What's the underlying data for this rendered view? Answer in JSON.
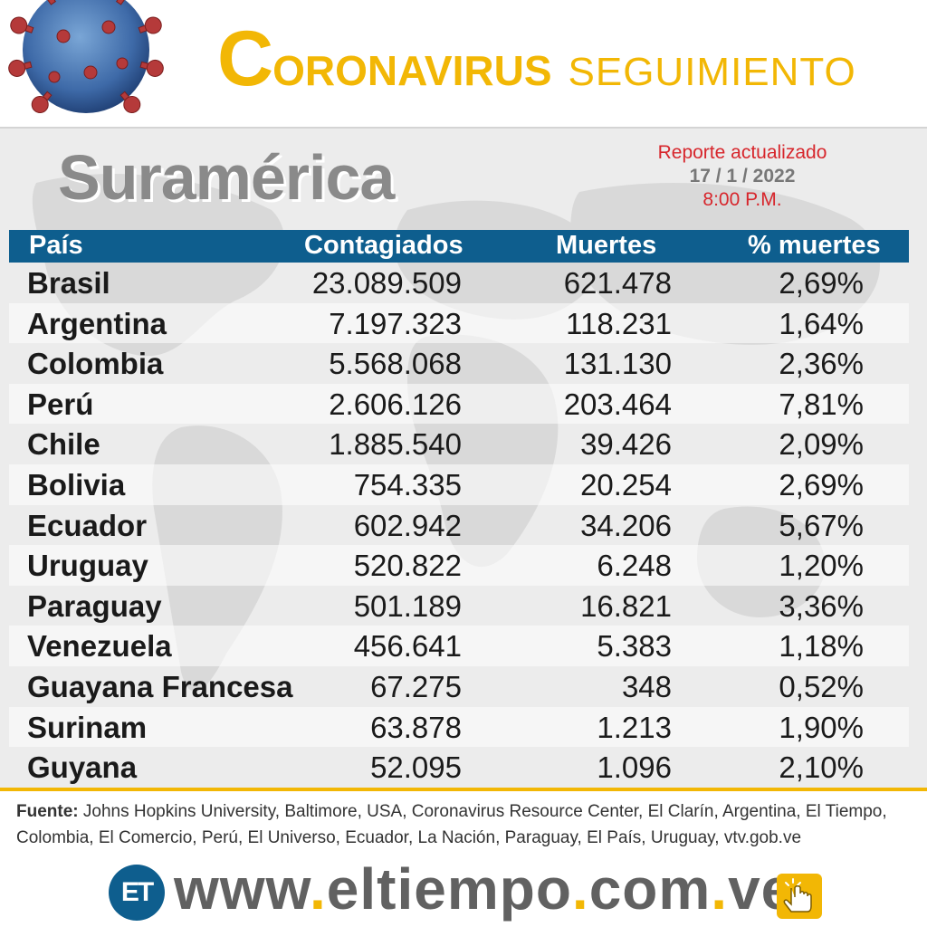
{
  "header": {
    "title_initial": "C",
    "title_rest": "ORONAVIRUS",
    "title_subtitle": "SEGUIMIENTO",
    "region": "Suramérica",
    "report_label": "Reporte actualizado",
    "report_date": "17 / 1 / 2022",
    "report_time": "8:00 P.M."
  },
  "table": {
    "columns": [
      "País",
      "Contagiados",
      "Muertes",
      "% muertes"
    ],
    "rows": [
      {
        "country": "Brasil",
        "cases": "23.089.509",
        "deaths": "621.478",
        "pct": "2,69%"
      },
      {
        "country": "Argentina",
        "cases": "7.197.323",
        "deaths": "118.231",
        "pct": "1,64%"
      },
      {
        "country": "Colombia",
        "cases": "5.568.068",
        "deaths": "131.130",
        "pct": "2,36%"
      },
      {
        "country": "Perú",
        "cases": "2.606.126",
        "deaths": "203.464",
        "pct": "7,81%"
      },
      {
        "country": "Chile",
        "cases": "1.885.540",
        "deaths": "39.426",
        "pct": "2,09%"
      },
      {
        "country": "Bolivia",
        "cases": "754.335",
        "deaths": "20.254",
        "pct": "2,69%"
      },
      {
        "country": "Ecuador",
        "cases": "602.942",
        "deaths": "34.206",
        "pct": "5,67%"
      },
      {
        "country": "Uruguay",
        "cases": "520.822",
        "deaths": "6.248",
        "pct": "1,20%"
      },
      {
        "country": "Paraguay",
        "cases": "501.189",
        "deaths": "16.821",
        "pct": "3,36%"
      },
      {
        "country": "Venezuela",
        "cases": "456.641",
        "deaths": "5.383",
        "pct": "1,18%"
      },
      {
        "country": "Guayana Francesa",
        "cases": "67.275",
        "deaths": "348",
        "pct": "0,52%"
      },
      {
        "country": "Surinam",
        "cases": "63.878",
        "deaths": "1.213",
        "pct": "1,90%"
      },
      {
        "country": "Guyana",
        "cases": "52.095",
        "deaths": "1.096",
        "pct": "2,10%"
      }
    ]
  },
  "source": {
    "label": "Fuente:",
    "text": " Johns Hopkins University, Baltimore, USA, Coronavirus Resource Center,  El Clarín, Argentina, El Tiempo, Colombia, El Comercio, Perú, El Universo, Ecuador, La Nación, Paraguay, El País, Uruguay, vtv.gob.ve"
  },
  "footer": {
    "logo_text": "ET",
    "url_parts": [
      "www",
      ".",
      "eltiempo",
      ".",
      "com",
      ".",
      "ve"
    ],
    "click_icon": "hand-pointer-icon"
  },
  "colors": {
    "accent": "#f2b705",
    "header_bar": "#0e5e8e",
    "report_red": "#d7262c",
    "region_gray": "#8a8a8a"
  }
}
